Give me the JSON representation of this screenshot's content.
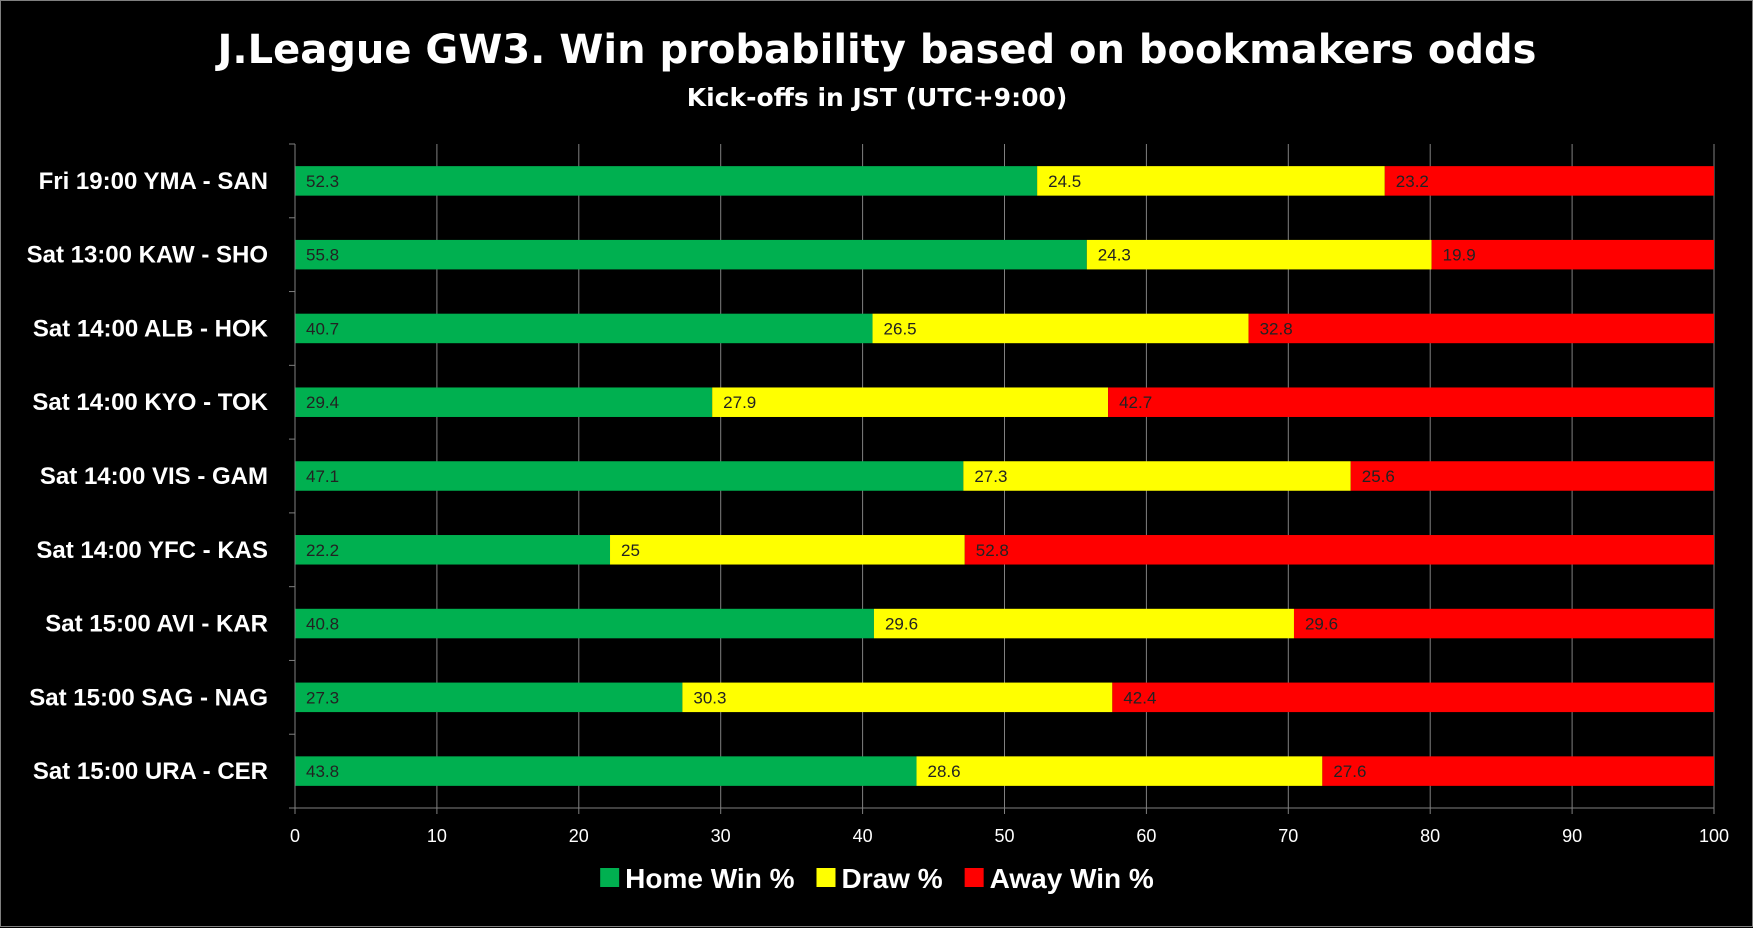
{
  "chart_data": {
    "type": "bar",
    "orientation": "horizontal",
    "stacked": true,
    "title": "J.League GW3. Win probability based on bookmakers odds",
    "subtitle": "Kick-offs in JST (UTC+9:00)",
    "categories": [
      "Fri 19:00 YMA - SAN",
      "Sat 13:00 KAW - SHO",
      "Sat 14:00 ALB - HOK",
      "Sat 14:00 KYO - TOK",
      "Sat 14:00 VIS - GAM",
      "Sat 14:00 YFC - KAS",
      "Sat 15:00 AVI - KAR",
      "Sat 15:00 SAG - NAG",
      "Sat 15:00 URA - CER"
    ],
    "series": [
      {
        "name": "Home Win %",
        "color": "#00b050",
        "labels": [
          "52.3",
          "55.8",
          "40.7",
          "29.4",
          "47.1",
          "22.2",
          "40.8",
          "27.3",
          "43.8"
        ],
        "values": [
          52.3,
          55.8,
          40.7,
          29.4,
          47.1,
          22.2,
          40.8,
          27.3,
          43.8
        ]
      },
      {
        "name": "Draw %",
        "color": "#ffff00",
        "labels": [
          "24.5",
          "24.3",
          "26.5",
          "27.9",
          "27.3",
          "25",
          "29.6",
          "30.3",
          "28.6"
        ],
        "values": [
          24.5,
          24.3,
          26.5,
          27.9,
          27.3,
          25,
          29.6,
          30.3,
          28.6
        ]
      },
      {
        "name": "Away Win %",
        "color": "#ff0000",
        "labels": [
          "23.2",
          "19.9",
          "32.8",
          "42.7",
          "25.6",
          "52.8",
          "29.6",
          "42.4",
          "27.6"
        ],
        "values": [
          23.2,
          19.9,
          32.8,
          42.7,
          25.6,
          52.8,
          29.6,
          42.4,
          27.6
        ]
      }
    ],
    "xlim": [
      0,
      100
    ],
    "xticks": [
      "0",
      "10",
      "20",
      "30",
      "40",
      "50",
      "60",
      "70",
      "80",
      "90",
      "100"
    ],
    "grid": true,
    "legend_position": "bottom",
    "background": "#000000",
    "text_color": "#ffffff"
  }
}
